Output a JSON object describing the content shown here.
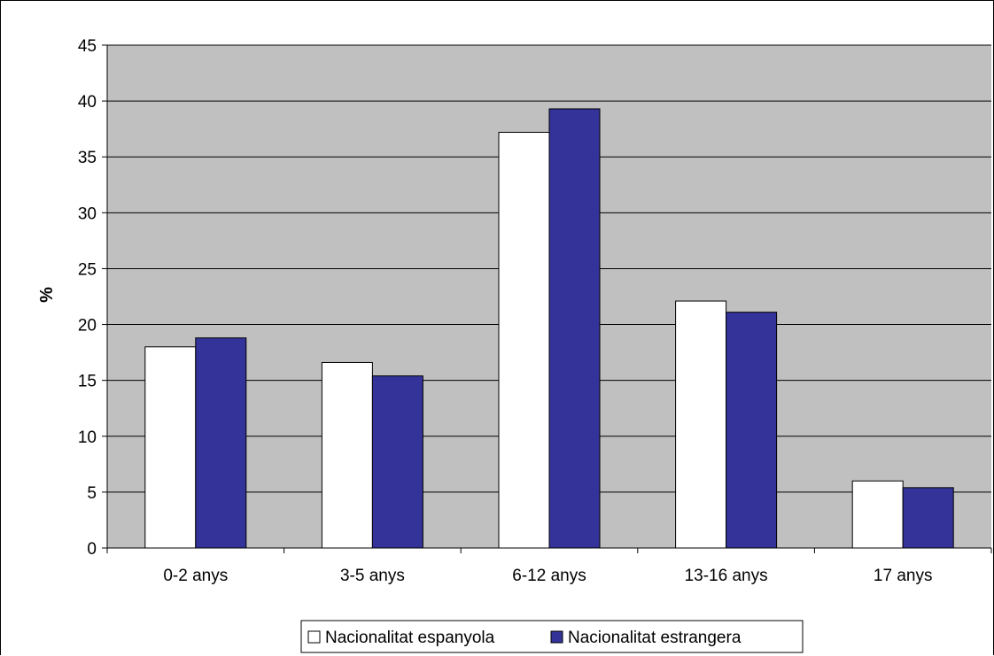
{
  "chart_data": {
    "type": "bar",
    "title": "",
    "xlabel": "",
    "ylabel": "%",
    "ylim": [
      0,
      45
    ],
    "y_ticks": [
      0,
      5,
      10,
      15,
      20,
      25,
      30,
      35,
      40,
      45
    ],
    "grid": true,
    "legend_position": "bottom",
    "categories": [
      "0-2 anys",
      "3-5 anys",
      "6-12 anys",
      "13-16 anys",
      "17 anys"
    ],
    "series": [
      {
        "name": "Nacionalitat espanyola",
        "color": "#ffffff",
        "values": [
          18.0,
          16.6,
          37.2,
          22.1,
          6.0
        ]
      },
      {
        "name": "Nacionalitat estrangera",
        "color": "#333399",
        "values": [
          18.8,
          15.4,
          39.3,
          21.1,
          5.4
        ]
      }
    ],
    "plot_background": "#c0c0c0"
  }
}
